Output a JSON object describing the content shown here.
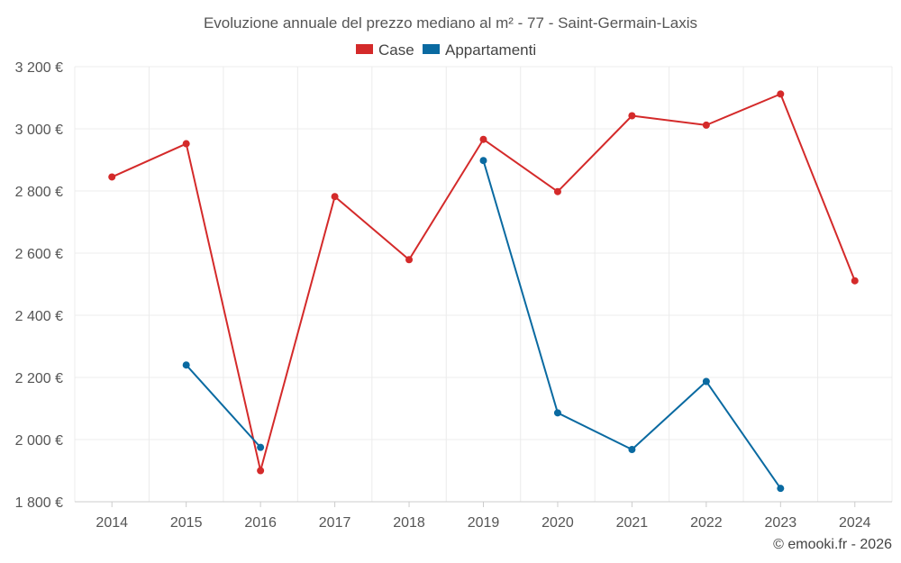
{
  "chart_data": {
    "type": "line",
    "title": "Evoluzione annuale del prezzo mediano al m² - 77 - Saint-Germain-Laxis",
    "categories": [
      "2014",
      "2015",
      "2016",
      "2017",
      "2018",
      "2019",
      "2020",
      "2021",
      "2022",
      "2023",
      "2024"
    ],
    "ylim": [
      1800,
      3200
    ],
    "yticks": [
      1800,
      2000,
      2200,
      2400,
      2600,
      2800,
      3000,
      3200
    ],
    "ytick_labels": [
      "1 800 €",
      "2 000 €",
      "2 200 €",
      "2 400 €",
      "2 600 €",
      "2 800 €",
      "3 000 €",
      "3 200 €"
    ],
    "grid": true,
    "legend_position": "top-center",
    "series": [
      {
        "name": "Case",
        "color": "#d42a2a",
        "values": [
          2845,
          2952,
          1900,
          2782,
          2579,
          2966,
          2798,
          3042,
          3012,
          3112,
          2511
        ]
      },
      {
        "name": "Appartamenti",
        "color": "#0a6aa1",
        "values": [
          null,
          2240,
          1975,
          null,
          null,
          2898,
          2086,
          1968,
          2187,
          1843,
          null
        ]
      }
    ]
  },
  "credit": "© emooki.fr - 2026"
}
